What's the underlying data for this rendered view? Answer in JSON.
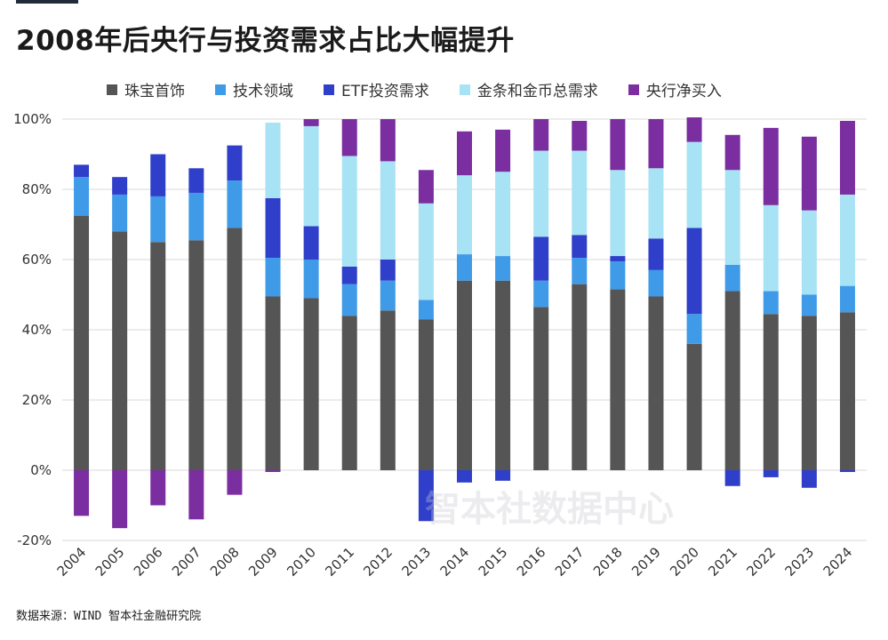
{
  "header": {
    "title": "2008年后央行与投资需求占比大幅提升"
  },
  "source": "数据来源：WIND 智本社金融研究院",
  "watermark": "智本社数据中心",
  "chart_data": {
    "type": "bar",
    "stacked": true,
    "title": "2008年后央行与投资需求占比大幅提升",
    "categories": [
      "2004",
      "2005",
      "2006",
      "2007",
      "2008",
      "2009",
      "2010",
      "2011",
      "2012",
      "2013",
      "2014",
      "2015",
      "2016",
      "2017",
      "2018",
      "2019",
      "2020",
      "2021",
      "2022",
      "2023",
      "2024"
    ],
    "ylim": [
      -20,
      100
    ],
    "yticks": [
      -20,
      0,
      20,
      40,
      60,
      80,
      100
    ],
    "ytick_labels": [
      "-20%",
      "0%",
      "20%",
      "40%",
      "60%",
      "80%",
      "100%"
    ],
    "grid": true,
    "legend_position": "top",
    "series": [
      {
        "name": "珠宝首饰",
        "color": "#555555",
        "values": [
          72.5,
          68.0,
          65.0,
          65.5,
          69.0,
          49.5,
          49.0,
          44.0,
          45.5,
          43.0,
          54.0,
          54.0,
          46.5,
          53.0,
          51.5,
          49.5,
          36.0,
          51.0,
          44.5,
          44.0,
          45.0
        ]
      },
      {
        "name": "技术领域",
        "color": "#3f9be8",
        "values": [
          11.0,
          10.5,
          13.0,
          13.5,
          13.5,
          11.0,
          11.0,
          9.0,
          8.5,
          5.5,
          7.5,
          7.0,
          7.5,
          7.5,
          8.0,
          7.5,
          8.5,
          7.5,
          6.5,
          6.0,
          7.5
        ]
      },
      {
        "name": "ETF投资需求",
        "color": "#2f3fc9",
        "values": [
          3.5,
          5.0,
          12.0,
          7.0,
          10.0,
          17.0,
          9.5,
          5.0,
          6.0,
          -14.5,
          -3.5,
          -3.0,
          12.5,
          6.5,
          1.5,
          9.0,
          24.5,
          -4.5,
          -2.0,
          -5.0,
          -0.5
        ]
      },
      {
        "name": "金条和金币总需求",
        "color": "#a8e3f5",
        "values": [
          0,
          0,
          0,
          0,
          0,
          21.5,
          28.5,
          31.5,
          28.0,
          27.5,
          22.5,
          24.0,
          24.5,
          24.0,
          24.5,
          20.0,
          24.5,
          27.0,
          24.5,
          24.0,
          26.0
        ]
      },
      {
        "name": "央行净买入",
        "color": "#7a2ea0",
        "values": [
          -13.0,
          -16.5,
          -10.0,
          -14.0,
          -7.0,
          -0.5,
          2.0,
          10.5,
          12.0,
          9.5,
          12.5,
          12.0,
          9.0,
          8.5,
          14.5,
          14.0,
          7.0,
          10.0,
          22.0,
          21.0,
          21.0
        ]
      }
    ]
  }
}
